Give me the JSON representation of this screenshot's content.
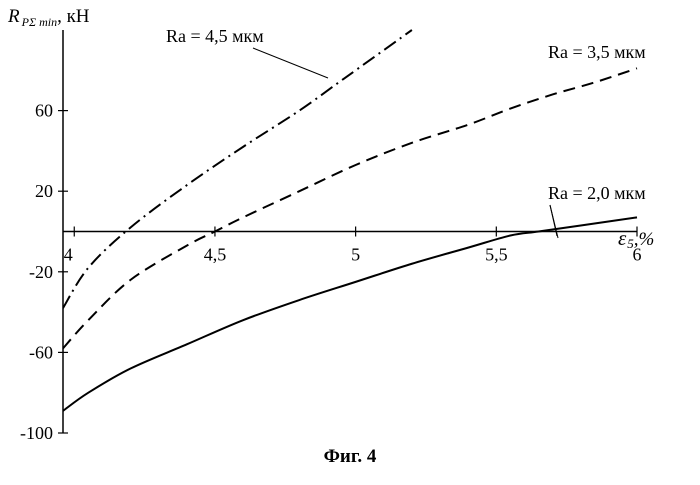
{
  "chart_data": {
    "type": "line",
    "ylabel": {
      "symbol": "R",
      "subscript": "PΣ min",
      "unit": ", кН"
    },
    "xlabel": {
      "symbol": "ε",
      "subscript": "5",
      "unit": ",%"
    },
    "x_ticks": [
      "4",
      "4,5",
      "5",
      "5,5",
      "6"
    ],
    "y_ticks": [
      "60",
      "20",
      "-20",
      "-60",
      "-100"
    ],
    "xlim": [
      3.96,
      6
    ],
    "ylim": [
      -100,
      100
    ],
    "grid": false,
    "series": [
      {
        "name": "Ra = 4,5 мкм",
        "style": "dash-dot",
        "x": [
          3.96,
          4.05,
          4.2,
          4.4,
          4.6,
          4.8,
          4.93,
          5.0,
          5.2
        ],
        "y": [
          -38,
          -18,
          2,
          23,
          42,
          60,
          73,
          80,
          100
        ]
      },
      {
        "name": "Ra = 3,5 мкм",
        "style": "dashed",
        "x": [
          3.96,
          4.05,
          4.2,
          4.4,
          4.5,
          4.6,
          4.8,
          5.0,
          5.2,
          5.4,
          5.55,
          5.7,
          5.85,
          6.0
        ],
        "y": [
          -58,
          -44,
          -24,
          -7,
          0,
          7,
          20,
          33,
          44,
          53,
          61,
          68,
          74,
          81
        ]
      },
      {
        "name": "Ra = 2,0 мкм",
        "style": "solid",
        "x": [
          3.96,
          4.05,
          4.2,
          4.4,
          4.6,
          4.8,
          5.0,
          5.2,
          5.4,
          5.55,
          5.65,
          5.8,
          6.0
        ],
        "y": [
          -89,
          -80,
          -68,
          -56,
          -44,
          -34,
          -25,
          -16,
          -8,
          -2,
          0,
          3,
          7
        ]
      }
    ]
  },
  "caption": "Фиг. 4"
}
